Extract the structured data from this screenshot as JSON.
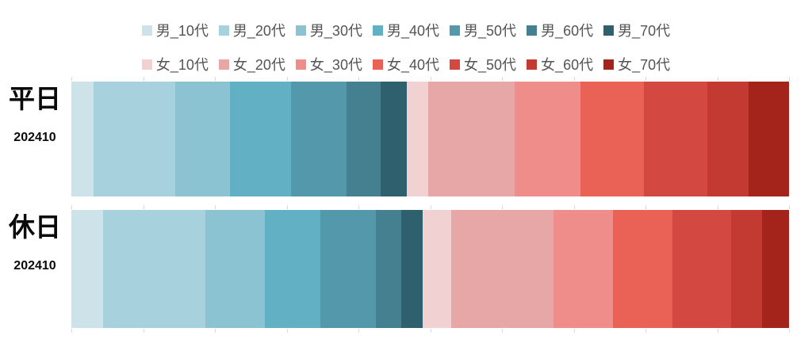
{
  "legend": {
    "rows": [
      {
        "name": "male",
        "items": [
          "男_10代",
          "男_20代",
          "男_30代",
          "男_40代",
          "男_50代",
          "男_60代",
          "男_70代"
        ]
      },
      {
        "name": "female",
        "items": [
          "女_10代",
          "女_20代",
          "女_30代",
          "女_40代",
          "女_50代",
          "女_60代",
          "女_70代"
        ]
      }
    ]
  },
  "chart_data": {
    "type": "bar",
    "orientation": "horizontal",
    "stacked": true,
    "units": "percent share of total (estimated from segment widths)",
    "legend_position": "top",
    "grid": false,
    "xlim": [
      0,
      100
    ],
    "axis_ticks_percent": [
      0,
      10,
      20,
      30,
      40,
      50,
      60,
      70,
      80,
      90,
      100
    ],
    "categories": [
      "男_10代",
      "男_20代",
      "男_30代",
      "男_40代",
      "男_50代",
      "男_60代",
      "男_70代",
      "女_10代",
      "女_20代",
      "女_30代",
      "女_40代",
      "女_50代",
      "女_60代",
      "女_70代"
    ],
    "colors": [
      "#cde3e9",
      "#a7d1dc",
      "#8cc3d2",
      "#61b0c4",
      "#5499ab",
      "#44808f",
      "#2f606e",
      "#f1d1d1",
      "#e8a7a7",
      "#ee8d89",
      "#ea6156",
      "#d34941",
      "#c23a31",
      "#a4231b"
    ],
    "rows": [
      {
        "key": "weekday",
        "label": "平日",
        "sublabel": "202410",
        "values": [
          3.1,
          11.4,
          7.6,
          8.5,
          7.7,
          4.8,
          3.6,
          3.0,
          12.1,
          9.1,
          8.9,
          8.8,
          5.8,
          5.6
        ]
      },
      {
        "key": "holiday",
        "label": "休日",
        "sublabel": "202410",
        "values": [
          4.4,
          14.3,
          8.3,
          7.7,
          7.7,
          3.6,
          3.0,
          3.9,
          14.3,
          8.3,
          8.3,
          8.1,
          4.3,
          3.8
        ]
      }
    ],
    "text_colors": {
      "legend_text": "#545454",
      "row_label_text": "#0a0a0a",
      "tick_color": "#d9d9d9"
    }
  }
}
